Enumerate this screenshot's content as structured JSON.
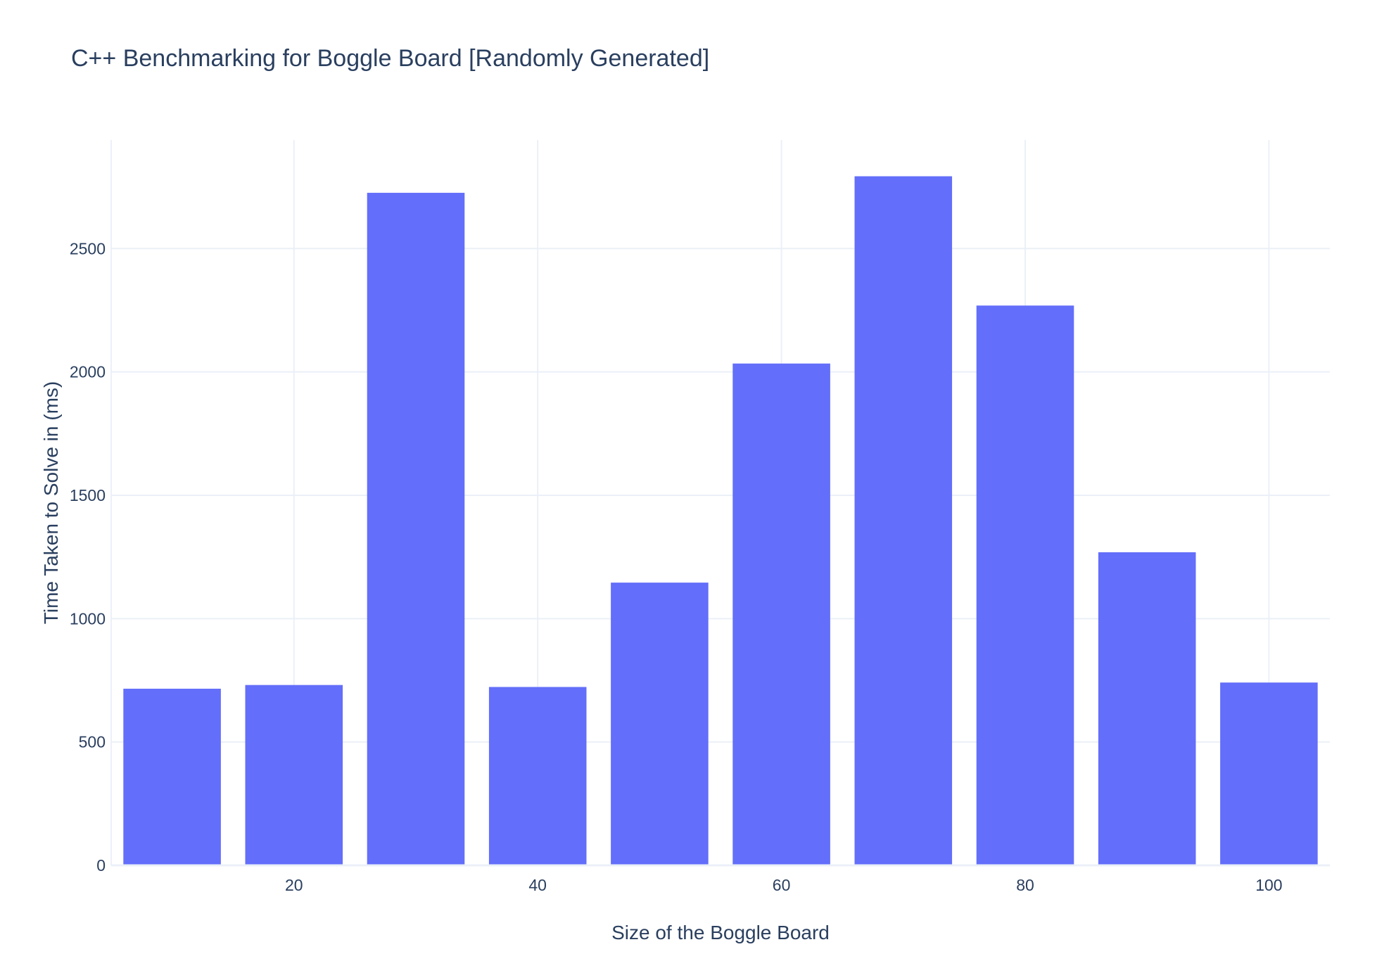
{
  "chart_data": {
    "type": "bar",
    "title": "C++ Benchmarking for Boggle Board [Randomly Generated]",
    "xlabel": "Size of the Boggle Board",
    "ylabel": "Time Taken to Solve in (ms)",
    "x": [
      10,
      20,
      30,
      40,
      50,
      60,
      70,
      80,
      90,
      100
    ],
    "values": [
      716,
      731,
      2726,
      723,
      1146,
      2034,
      2793,
      2269,
      1269,
      741
    ],
    "xlim": [
      5,
      105
    ],
    "ylim": [
      0,
      2940
    ],
    "xticks": [
      20,
      40,
      60,
      80,
      100
    ],
    "yticks": [
      0,
      500,
      1000,
      1500,
      2000,
      2500
    ],
    "bar_color": "#636efa",
    "grid": true,
    "grid_color": "#ebf0f8"
  }
}
